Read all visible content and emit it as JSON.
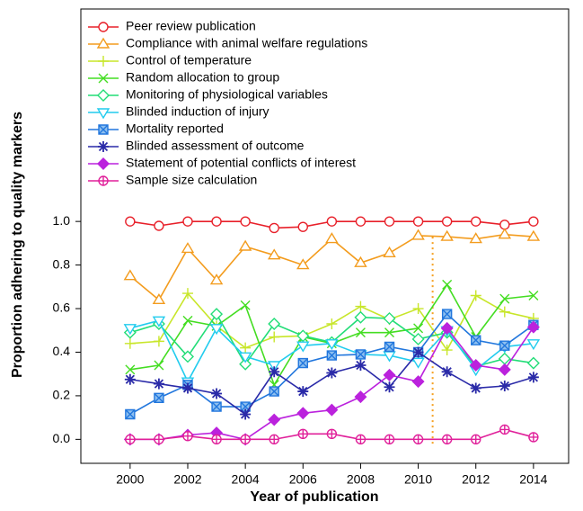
{
  "chart_data": {
    "type": "line",
    "xlabel": "Year of publication",
    "ylabel": "Proportion adhering to quality markers",
    "x": [
      2000,
      2001,
      2002,
      2003,
      2004,
      2005,
      2006,
      2007,
      2008,
      2009,
      2010,
      2011,
      2012,
      2013,
      2014
    ],
    "xlim": [
      1998.29,
      2015.22
    ],
    "ylim": [
      -0.11,
      1.975
    ],
    "xticks": [
      2000,
      2002,
      2004,
      2006,
      2008,
      2010,
      2012,
      2014
    ],
    "yticks": [
      {
        "value": 0,
        "label": "0.0"
      },
      {
        "value": 0.2,
        "label": "0.2"
      },
      {
        "value": 0.4,
        "label": "0.4"
      },
      {
        "value": 0.6,
        "label": "0.6"
      },
      {
        "value": 0.8,
        "label": "0.8"
      },
      {
        "value": 1,
        "label": "1.0"
      }
    ],
    "vline": {
      "x": 2010.5,
      "color": "#f5a021"
    },
    "legend": "top-left",
    "series": [
      {
        "name": "Peer review publication",
        "color": "#e8202a",
        "marker": "circle",
        "values": [
          1.0,
          0.98,
          1.0,
          1.0,
          1.0,
          0.97,
          0.975,
          1.0,
          1.0,
          1.0,
          1.0,
          1.0,
          1.0,
          0.985,
          1.0
        ]
      },
      {
        "name": "Compliance with animal welfare regulations",
        "color": "#f39c1e",
        "marker": "triangle",
        "values": [
          0.75,
          0.64,
          0.875,
          0.73,
          0.885,
          0.845,
          0.8,
          0.92,
          0.81,
          0.855,
          0.935,
          0.93,
          0.92,
          0.94,
          0.93
        ]
      },
      {
        "name": "Control of temperature",
        "color": "#c8e62a",
        "marker": "plus",
        "values": [
          0.44,
          0.45,
          0.67,
          0.52,
          0.42,
          0.47,
          0.475,
          0.53,
          0.61,
          0.55,
          0.6,
          0.41,
          0.66,
          0.585,
          0.555
        ]
      },
      {
        "name": "Random allocation to group",
        "color": "#44dd22",
        "marker": "cross",
        "values": [
          0.32,
          0.34,
          0.545,
          0.52,
          0.615,
          0.25,
          0.47,
          0.44,
          0.49,
          0.49,
          0.51,
          0.71,
          0.47,
          0.645,
          0.66
        ]
      },
      {
        "name": "Monitoring of physiological variables",
        "color": "#22dd77",
        "marker": "diamond",
        "values": [
          0.49,
          0.53,
          0.38,
          0.575,
          0.345,
          0.53,
          0.475,
          0.445,
          0.56,
          0.555,
          0.46,
          0.49,
          0.335,
          0.37,
          0.35
        ]
      },
      {
        "name": "Blinded induction of injury",
        "color": "#22ccee",
        "marker": "triangle-down",
        "values": [
          0.51,
          0.545,
          0.265,
          0.51,
          0.38,
          0.34,
          0.43,
          0.44,
          0.39,
          0.385,
          0.355,
          0.5,
          0.32,
          0.425,
          0.44
        ]
      },
      {
        "name": "Mortality reported",
        "color": "#2277dd",
        "marker": "square",
        "values": [
          0.115,
          0.19,
          0.25,
          0.15,
          0.15,
          0.22,
          0.35,
          0.385,
          0.39,
          0.425,
          0.4,
          0.575,
          0.455,
          0.43,
          0.525
        ]
      },
      {
        "name": "Blinded assessment of outcome",
        "color": "#2a2aa8",
        "marker": "asterisk",
        "values": [
          0.275,
          0.255,
          0.235,
          0.21,
          0.115,
          0.31,
          0.22,
          0.305,
          0.34,
          0.24,
          0.4,
          0.31,
          0.235,
          0.245,
          0.285
        ]
      },
      {
        "name": "Statement of potential conflicts of interest",
        "color": "#bb22dd",
        "marker": "diamond-filled",
        "values": [
          0,
          0,
          0.02,
          0.03,
          0,
          0.09,
          0.12,
          0.135,
          0.195,
          0.295,
          0.265,
          0.51,
          0.34,
          0.32,
          0.515
        ]
      },
      {
        "name": "Sample size calculation",
        "color": "#e0209a",
        "marker": "circle-plus",
        "values": [
          0,
          0,
          0.015,
          0,
          0,
          0,
          0.025,
          0.025,
          0,
          0,
          0,
          0,
          0,
          0.045,
          0.01
        ]
      }
    ]
  }
}
